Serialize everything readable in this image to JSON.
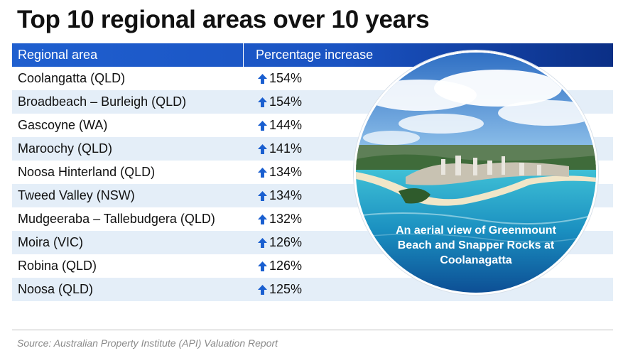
{
  "title": "Top 10 regional areas over 10 years",
  "chart_data": {
    "type": "table",
    "title": "Top 10 regional areas over 10 years",
    "columns": [
      "Regional area",
      "Percentage increase"
    ],
    "rows": [
      {
        "area": "Coolangatta (QLD)",
        "increase": "154%"
      },
      {
        "area": "Broadbeach – Burleigh (QLD)",
        "increase": "154%"
      },
      {
        "area": "Gascoyne (WA)",
        "increase": "144%"
      },
      {
        "area": "Maroochy (QLD)",
        "increase": "141%"
      },
      {
        "area": "Noosa Hinterland (QLD)",
        "increase": "134%"
      },
      {
        "area": "Tweed Valley (NSW)",
        "increase": "134%"
      },
      {
        "area": "Mudgeeraba – Tallebudgera (QLD)",
        "increase": "132%"
      },
      {
        "area": "Moira (VIC)",
        "increase": "126%"
      },
      {
        "area": "Robina (QLD)",
        "increase": "126%"
      },
      {
        "area": "Noosa (QLD)",
        "increase": "125%"
      }
    ],
    "source": "Source: Australian Property Institute (API) Valuation Report"
  },
  "photo": {
    "caption_lines": [
      "An aerial view of Greenmount",
      "Beach and Snapper Rocks at",
      "Coolanagatta"
    ]
  },
  "colors": {
    "header_start": "#1f5fcf",
    "header_end": "#0b2f86",
    "row_alt": "#e4eef8",
    "arrow": "#1a5fd0"
  }
}
